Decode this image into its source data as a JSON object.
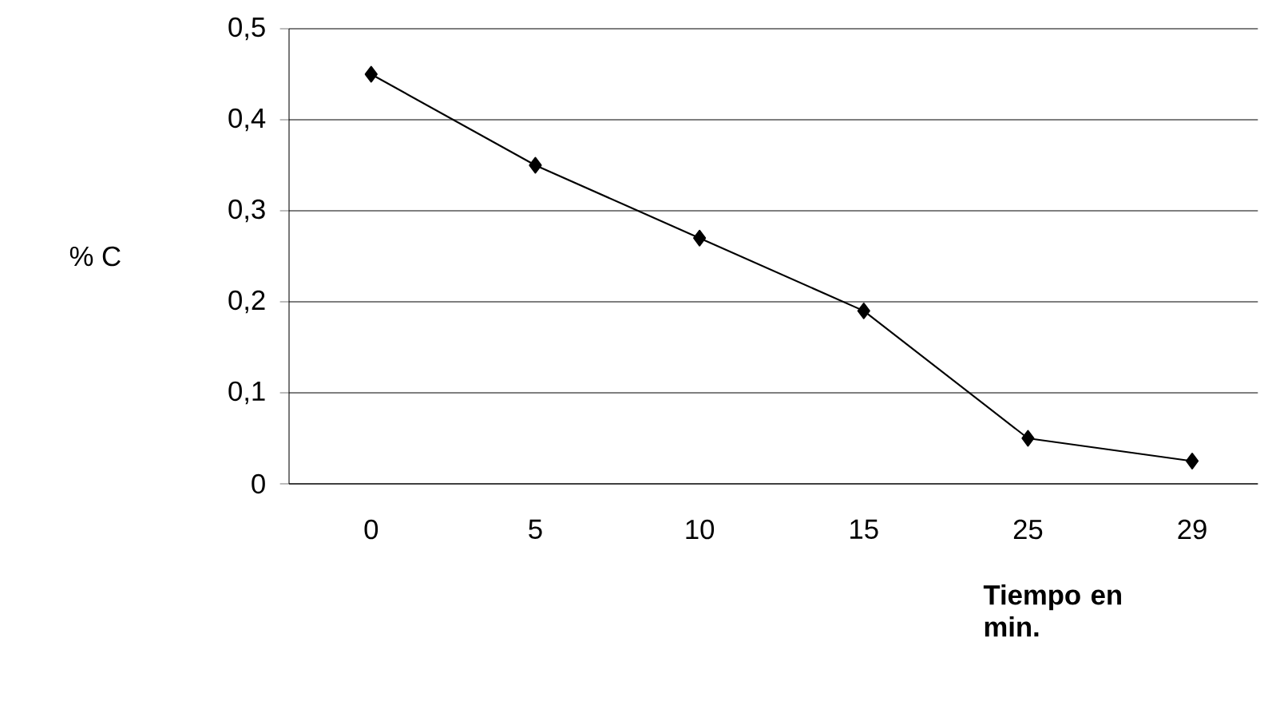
{
  "chart_data": {
    "type": "line",
    "xlabel": "Tiempo en min.",
    "ylabel": "% C",
    "categories": [
      "0",
      "5",
      "10",
      "15",
      "25",
      "29"
    ],
    "values": [
      0.45,
      0.35,
      0.27,
      0.19,
      0.05,
      0.025
    ],
    "color": "#000000",
    "marker": "diamond",
    "line_style": "solid",
    "ylim": [
      0,
      0.5
    ],
    "yticks": [
      {
        "value": 0,
        "label": "0"
      },
      {
        "value": 0.1,
        "label": "0,1"
      },
      {
        "value": 0.2,
        "label": "0,2"
      },
      {
        "value": 0.3,
        "label": "0,3"
      },
      {
        "value": 0.4,
        "label": "0,4"
      },
      {
        "value": 0.5,
        "label": "0,5"
      }
    ],
    "grid": "y"
  }
}
